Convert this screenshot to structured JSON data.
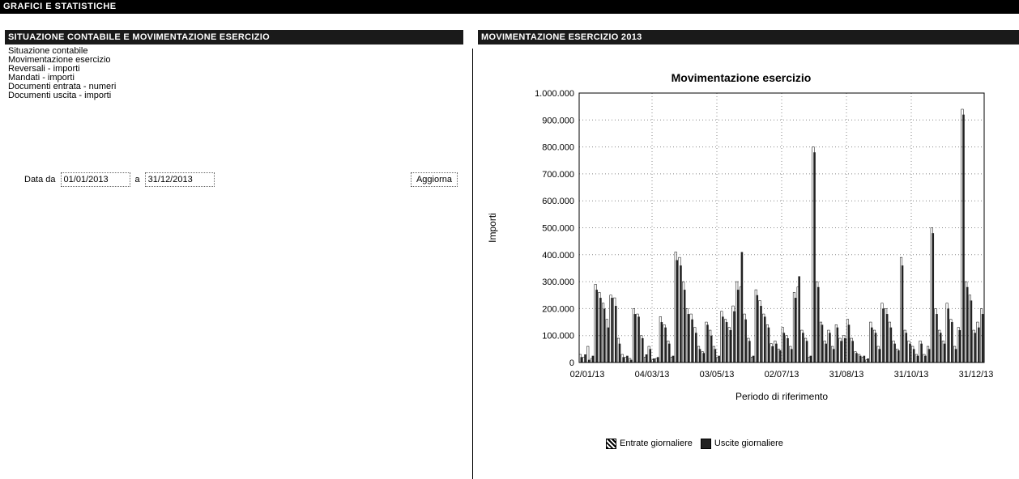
{
  "page": {
    "title": "GRAFICI E STATISTICHE"
  },
  "left_panel": {
    "header": "SITUAZIONE CONTABILE E MOVIMENTAZIONE ESERCIZIO",
    "menu": [
      "Situazione contabile",
      "Movimentazione esercizio",
      "Reversali - importi",
      "Mandati - importi",
      "Documenti entrata - numeri",
      "Documenti uscita - importi"
    ],
    "filter": {
      "from_label": "Data da",
      "from_value": "01/01/2013",
      "to_label": "a",
      "to_value": "31/12/2013",
      "update_button": "Aggiorna"
    }
  },
  "right_panel": {
    "header": "MOVIMENTAZIONE ESERCIZIO 2013"
  },
  "colors": {
    "titlebar": "#000000",
    "header": "#1a1a1a",
    "bars": "#222222"
  },
  "chart_data": {
    "type": "bar",
    "title": "Movimentazione esercizio",
    "xlabel": "Periodo di riferimento",
    "ylabel": "Importi",
    "ylim": [
      0,
      1000000
    ],
    "yticks": [
      "0",
      "100.000",
      "200.000",
      "300.000",
      "400.000",
      "500.000",
      "600.000",
      "700.000",
      "800.000",
      "900.000",
      "1.000.000"
    ],
    "xticks": [
      "02/01/13",
      "04/03/13",
      "03/05/13",
      "02/07/13",
      "31/08/13",
      "31/10/13",
      "31/12/13"
    ],
    "grid": true,
    "legend_position": "bottom",
    "series": [
      {
        "name": "Entrate giornaliere",
        "values": [
          30000,
          20000,
          60000,
          15000,
          290000,
          260000,
          220000,
          160000,
          250000,
          240000,
          90000,
          30000,
          20000,
          15000,
          200000,
          180000,
          100000,
          20000,
          60000,
          10000,
          15000,
          170000,
          140000,
          80000,
          20000,
          410000,
          390000,
          300000,
          200000,
          180000,
          130000,
          60000,
          40000,
          150000,
          120000,
          60000,
          20000,
          190000,
          160000,
          130000,
          210000,
          300000,
          280000,
          180000,
          90000,
          20000,
          270000,
          230000,
          180000,
          140000,
          70000,
          80000,
          50000,
          130000,
          100000,
          60000,
          260000,
          280000,
          120000,
          90000,
          20000,
          800000,
          300000,
          150000,
          80000,
          120000,
          60000,
          140000,
          90000,
          100000,
          160000,
          90000,
          40000,
          30000,
          20000,
          10000,
          150000,
          120000,
          60000,
          220000,
          200000,
          150000,
          80000,
          50000,
          390000,
          120000,
          80000,
          60000,
          30000,
          80000,
          30000,
          60000,
          500000,
          200000,
          120000,
          80000,
          220000,
          160000,
          60000,
          130000,
          940000,
          300000,
          250000,
          120000,
          150000,
          200000
        ]
      },
      {
        "name": "Uscite giornaliere",
        "values": [
          20000,
          30000,
          10000,
          25000,
          270000,
          240000,
          200000,
          130000,
          240000,
          210000,
          70000,
          20000,
          25000,
          10000,
          180000,
          170000,
          90000,
          30000,
          50000,
          15000,
          20000,
          150000,
          130000,
          70000,
          25000,
          380000,
          360000,
          270000,
          180000,
          160000,
          110000,
          50000,
          35000,
          140000,
          100000,
          50000,
          25000,
          170000,
          150000,
          120000,
          190000,
          270000,
          410000,
          160000,
          80000,
          25000,
          250000,
          210000,
          170000,
          130000,
          60000,
          70000,
          45000,
          110000,
          90000,
          50000,
          240000,
          320000,
          110000,
          80000,
          25000,
          780000,
          280000,
          140000,
          70000,
          110000,
          50000,
          130000,
          80000,
          90000,
          140000,
          80000,
          35000,
          25000,
          25000,
          15000,
          130000,
          110000,
          50000,
          200000,
          180000,
          130000,
          70000,
          45000,
          360000,
          110000,
          70000,
          50000,
          25000,
          70000,
          25000,
          50000,
          480000,
          180000,
          110000,
          70000,
          200000,
          150000,
          50000,
          120000,
          920000,
          280000,
          230000,
          110000,
          130000,
          180000
        ]
      }
    ]
  }
}
